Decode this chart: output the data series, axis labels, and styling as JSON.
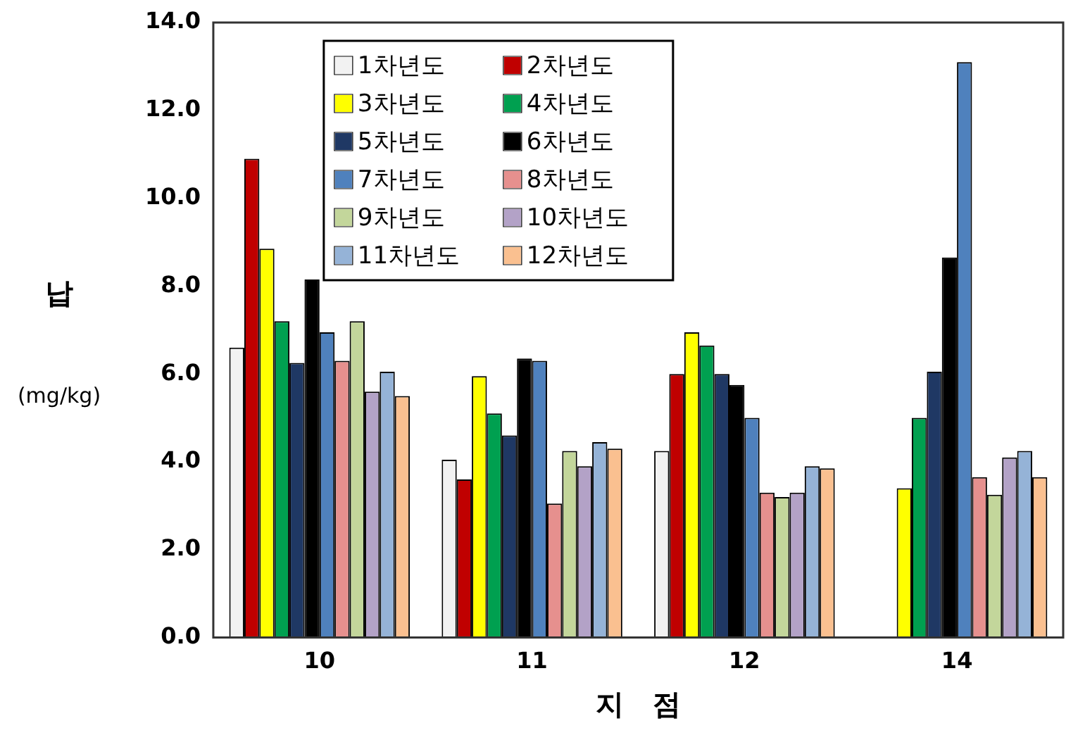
{
  "chart_data": {
    "type": "bar",
    "xlabel": "지 점",
    "ylabel": "납\n(mg/kg)",
    "categories": [
      "10",
      "11",
      "12",
      "14"
    ],
    "series": [
      {
        "name": "1차년도",
        "color": "#f2f2f2",
        "values": [
          6.6,
          4.05,
          4.25,
          null
        ]
      },
      {
        "name": "2차년도",
        "color": "#c00000",
        "values": [
          10.9,
          3.6,
          6.0,
          null
        ]
      },
      {
        "name": "3차년도",
        "color": "#ffff00",
        "values": [
          8.85,
          5.95,
          6.95,
          3.4
        ]
      },
      {
        "name": "4차년도",
        "color": "#00a050",
        "values": [
          7.2,
          5.1,
          6.65,
          5.0
        ]
      },
      {
        "name": "5차년도",
        "color": "#1f3864",
        "values": [
          6.25,
          4.6,
          6.0,
          6.05
        ]
      },
      {
        "name": "6차년도",
        "color": "#000000",
        "values": [
          8.15,
          6.35,
          5.75,
          8.65
        ]
      },
      {
        "name": "7차년도",
        "color": "#4f81bd",
        "values": [
          6.95,
          6.3,
          5.0,
          13.1
        ]
      },
      {
        "name": "8차년도",
        "color": "#e6908e",
        "values": [
          6.3,
          3.05,
          3.3,
          3.65
        ]
      },
      {
        "name": "9차년도",
        "color": "#c3d69b",
        "values": [
          7.2,
          4.25,
          3.2,
          3.25
        ]
      },
      {
        "name": "10차년도",
        "color": "#b3a2c7",
        "values": [
          5.6,
          3.9,
          3.3,
          4.1
        ]
      },
      {
        "name": "11차년도",
        "color": "#95b3d7",
        "values": [
          6.05,
          4.45,
          3.9,
          4.25
        ]
      },
      {
        "name": "12차년도",
        "color": "#fac090",
        "values": [
          5.5,
          4.3,
          3.85,
          3.65
        ]
      }
    ],
    "ylim": [
      0,
      14
    ],
    "yticks": [
      {
        "value": 0,
        "label": "0.0"
      },
      {
        "value": 2,
        "label": "2.0"
      },
      {
        "value": 4,
        "label": "4.0"
      },
      {
        "value": 6,
        "label": "6.0"
      },
      {
        "value": 8,
        "label": "8.0"
      },
      {
        "value": 10,
        "label": "10.0"
      },
      {
        "value": 12,
        "label": "12.0"
      },
      {
        "value": 14,
        "label": "14.0"
      }
    ],
    "legend": "top"
  }
}
